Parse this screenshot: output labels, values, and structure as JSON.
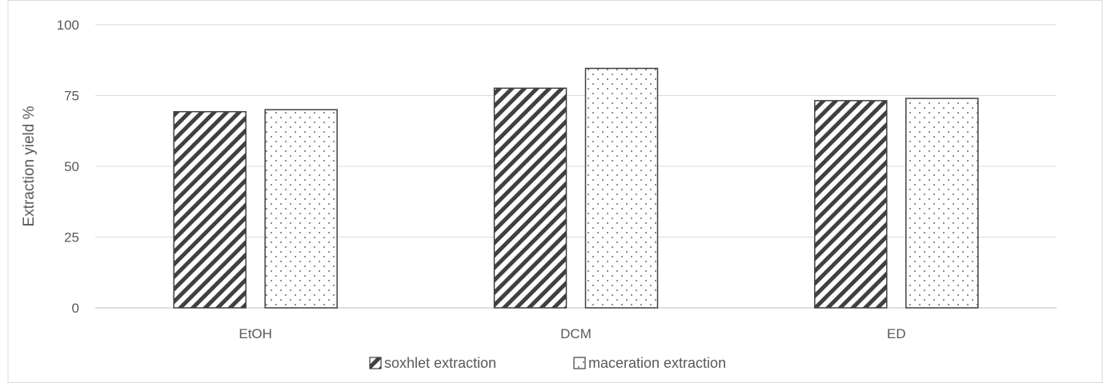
{
  "chart_data": {
    "type": "bar",
    "categories": [
      "EtOH",
      "DCM",
      "ED"
    ],
    "series": [
      {
        "name": "soxhlet extraction",
        "values": [
          69.3,
          77.6,
          73.2
        ],
        "pattern": "diagonal-hatch"
      },
      {
        "name": "maceration extraction",
        "values": [
          70.0,
          84.6,
          74.0
        ],
        "pattern": "dots"
      }
    ],
    "title": "",
    "xlabel": "",
    "ylabel": "Extraction yield %",
    "ylim": [
      0,
      100
    ],
    "yticks": [
      0,
      25,
      50,
      75,
      100
    ],
    "grid": true,
    "legend": "bottom",
    "colors": {
      "bar_stroke": "#404040",
      "hatch": "#404040",
      "dot": "#404040",
      "grid": "#d9d9d9",
      "text": "#595959"
    }
  }
}
